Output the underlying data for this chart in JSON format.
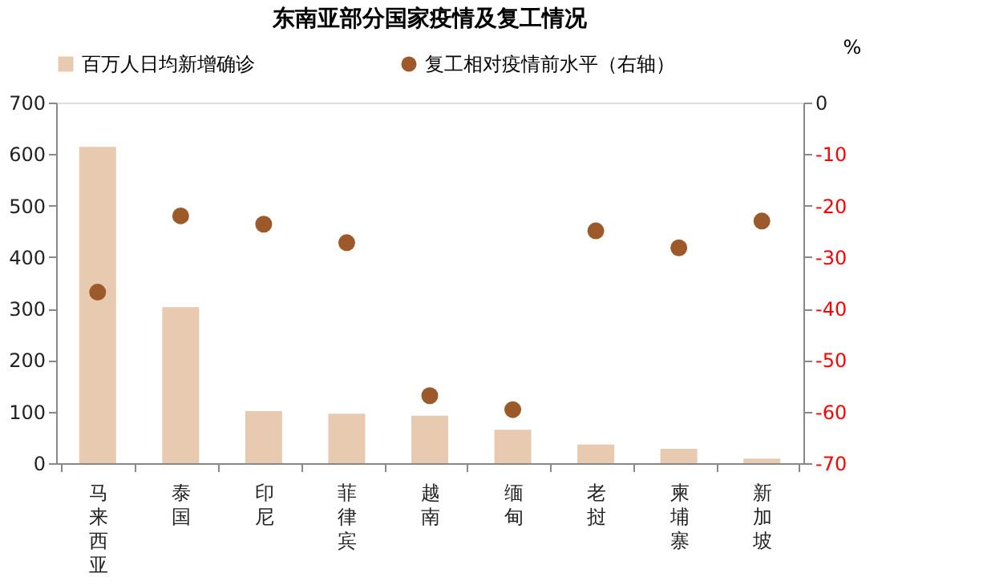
{
  "chart_data": {
    "type": "bar",
    "title": "东南亚部分国家疫情及复工情况",
    "y2label": "%",
    "categories": [
      "马来西亚",
      "泰国",
      "印尼",
      "菲律宾",
      "越南",
      "缅甸",
      "老挝",
      "柬埔寨",
      "新加坡"
    ],
    "series": [
      {
        "name": "百万人日均新增确诊",
        "color": "#e8cab0",
        "values": [
          614,
          303,
          101,
          96,
          92,
          65,
          36,
          28,
          9
        ]
      },
      {
        "name": "复工相对疫情前水平（右轴）",
        "type": "scatter",
        "axis": "y2",
        "marker": "circle",
        "color": "#9c5a2a",
        "values": [
          -36.8,
          -22.0,
          -23.6,
          -27.2,
          -56.9,
          -59.6,
          -24.9,
          -28.2,
          -23.0
        ]
      }
    ],
    "ylim": [
      0,
      700
    ],
    "yticks": [
      0,
      100,
      200,
      300,
      400,
      500,
      600,
      700
    ],
    "y2lim": [
      -70,
      0
    ],
    "y2ticks": [
      0,
      -10,
      -20,
      -30,
      -40,
      -50,
      -60,
      -70
    ],
    "grid": false,
    "legend": "top"
  }
}
